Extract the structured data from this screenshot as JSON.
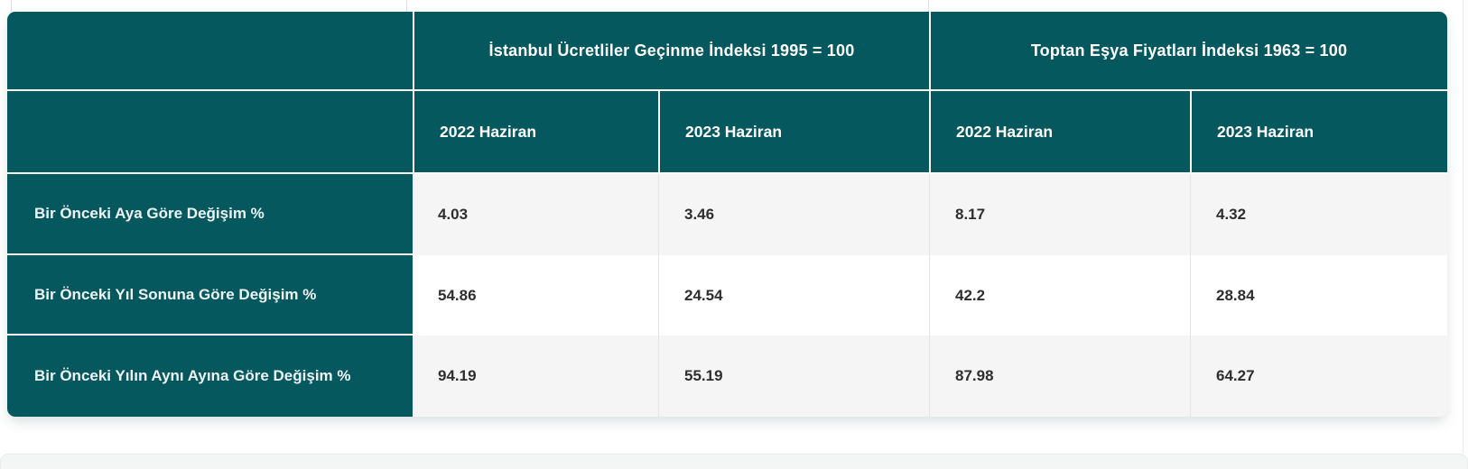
{
  "chart_data": {
    "type": "table",
    "column_groups": [
      {
        "label": "İstanbul Ücretliler Geçinme İndeksi 1995 = 100",
        "span": 2
      },
      {
        "label": "Toptan Eşya Fiyatları İndeksi 1963 = 100",
        "span": 2
      }
    ],
    "sub_headers": [
      "2022 Haziran",
      "2023 Haziran",
      "2022 Haziran",
      "2023 Haziran"
    ],
    "rows": [
      {
        "label": "Bir Önceki Aya Göre Değişim %",
        "values": [
          "4.03",
          "3.46",
          "8.17",
          "4.32"
        ]
      },
      {
        "label": "Bir Önceki Yıl Sonuna Göre Değişim %",
        "values": [
          "54.86",
          "24.54",
          "42.2",
          "28.84"
        ]
      },
      {
        "label": "Bir Önceki Yılın Aynı Ayına Göre Değişim %",
        "values": [
          "94.19",
          "55.19",
          "87.98",
          "64.27"
        ]
      }
    ]
  },
  "colors": {
    "header_teal": "#06585F",
    "row_alt": "#f5f5f6",
    "row_plain": "#ffffff",
    "header_text": "#ffffff",
    "value_text": "#2e2e2e",
    "divider": "#e3e5e5"
  }
}
